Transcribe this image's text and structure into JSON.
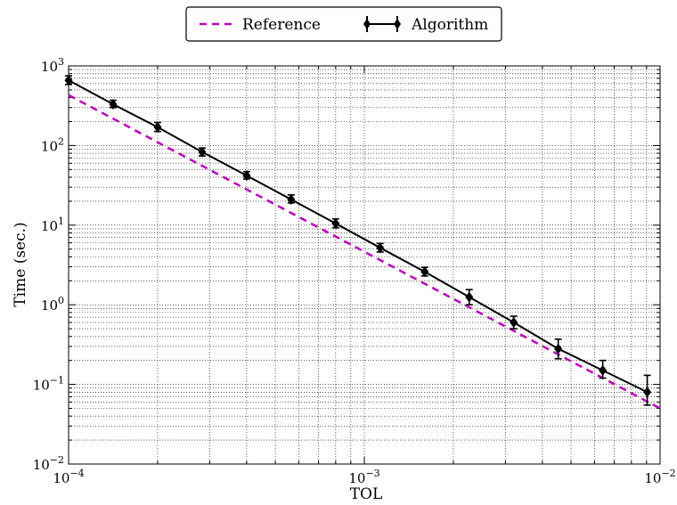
{
  "chart_data": {
    "type": "line",
    "xscale": "log",
    "yscale": "log",
    "xlim": [
      0.0001,
      0.01
    ],
    "ylim": [
      0.01,
      1000
    ],
    "grid": true,
    "legend": "top-center",
    "xlabel": "TOL",
    "ylabel": "Time (sec.)",
    "x_ticks": [
      {
        "base": "10",
        "exp": "−4"
      },
      {
        "base": "10",
        "exp": "−3"
      },
      {
        "base": "10",
        "exp": "−2"
      }
    ],
    "y_ticks": [
      {
        "base": "10",
        "exp": "−2"
      },
      {
        "base": "10",
        "exp": "−1"
      },
      {
        "base": "10",
        "exp": "0"
      },
      {
        "base": "10",
        "exp": "1"
      },
      {
        "base": "10",
        "exp": "2"
      },
      {
        "base": "10",
        "exp": "3"
      }
    ],
    "series": [
      {
        "name": "Reference",
        "style": "dashed",
        "color": "#bf00bf",
        "x": [
          0.0001,
          0.01
        ],
        "y": [
          430,
          0.05
        ]
      },
      {
        "name": "Algorithm",
        "style": "solid-errorbar-diamond",
        "color": "#000000",
        "x": [
          0.0001,
          0.0001414,
          0.0002,
          0.0002828,
          0.0004,
          0.0005657,
          0.0008,
          0.001131,
          0.0016,
          0.002263,
          0.0032,
          0.004525,
          0.0064,
          0.00905
        ],
        "y": [
          660,
          330,
          170,
          83,
          42,
          21,
          10.5,
          5.2,
          2.6,
          1.25,
          0.6,
          0.28,
          0.15,
          0.08
        ],
        "err_low": [
          585,
          300,
          150,
          74,
          38,
          19,
          9.3,
          4.6,
          2.3,
          1.0,
          0.5,
          0.21,
          0.12,
          0.055
        ],
        "err_high": [
          750,
          370,
          195,
          93,
          47,
          24,
          12,
          5.9,
          2.95,
          1.55,
          0.72,
          0.37,
          0.2,
          0.13
        ]
      }
    ]
  }
}
